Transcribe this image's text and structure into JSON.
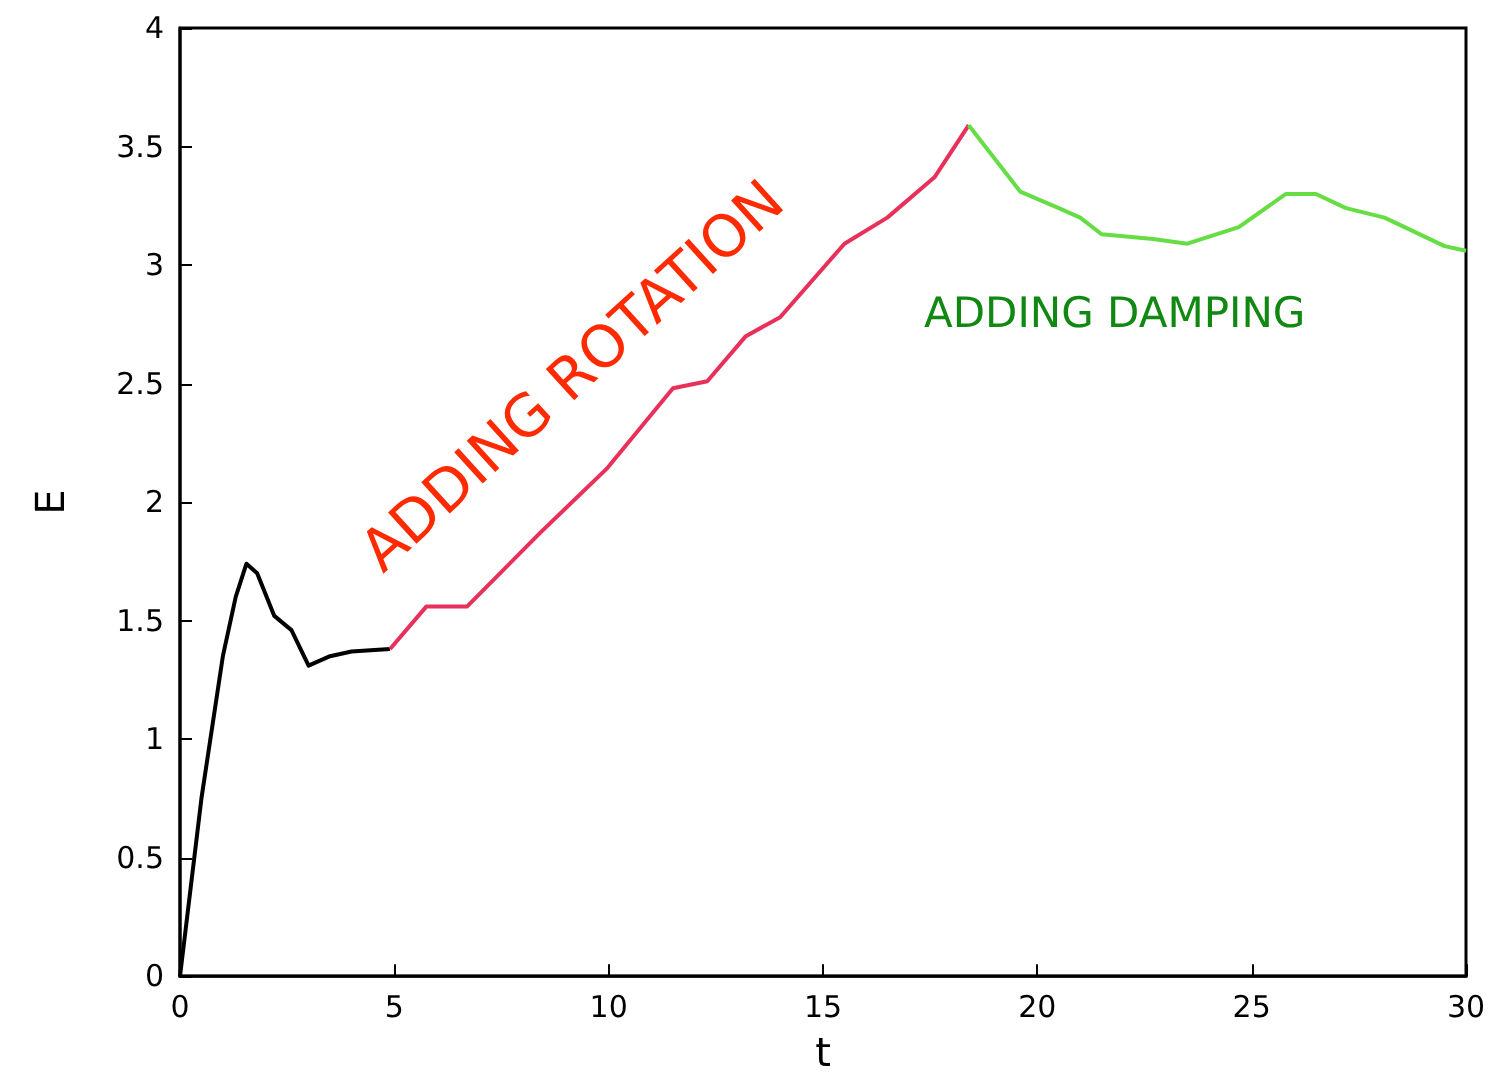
{
  "chart_data": {
    "type": "line",
    "xlabel": "t",
    "ylabel": "E",
    "xlim": [
      0,
      30
    ],
    "ylim": [
      0,
      4
    ],
    "xticks": [
      0,
      5,
      10,
      15,
      20,
      25,
      30
    ],
    "yticks": [
      0,
      0.5,
      1,
      1.5,
      2,
      2.5,
      3,
      3.5,
      4
    ],
    "grid": false,
    "marker": "none",
    "line_style": "solid",
    "series": [
      {
        "color": "#000000",
        "x": [
          0,
          0.5,
          1,
          1.3,
          1.55,
          1.8,
          2.2,
          2.6,
          3.0,
          3.5,
          4,
          4.9
        ],
        "values": [
          0,
          0.75,
          1.35,
          1.6,
          1.74,
          1.7,
          1.52,
          1.46,
          1.31,
          1.35,
          1.37,
          1.38
        ]
      },
      {
        "color": "#e8305a",
        "x": [
          4.9,
          5.75,
          6.7,
          8.4,
          9.95,
          11.5,
          12.3,
          13.2,
          14,
          15.5,
          16.5,
          17.6,
          18.4
        ],
        "values": [
          1.38,
          1.56,
          1.56,
          1.87,
          2.14,
          2.48,
          2.51,
          2.7,
          2.78,
          3.09,
          3.2,
          3.37,
          3.59
        ]
      },
      {
        "color": "#66dd44",
        "x": [
          18.4,
          19.6,
          20.5,
          21,
          21.5,
          22.7,
          23.5,
          24.7,
          25.8,
          26.5,
          27.2,
          28.1,
          29.5,
          30
        ],
        "values": [
          3.59,
          3.31,
          3.24,
          3.2,
          3.13,
          3.11,
          3.09,
          3.16,
          3.3,
          3.3,
          3.24,
          3.2,
          3.08,
          3.06
        ]
      }
    ],
    "annotations": [
      "ADDING ROTATION",
      "ADDING DAMPING"
    ]
  }
}
